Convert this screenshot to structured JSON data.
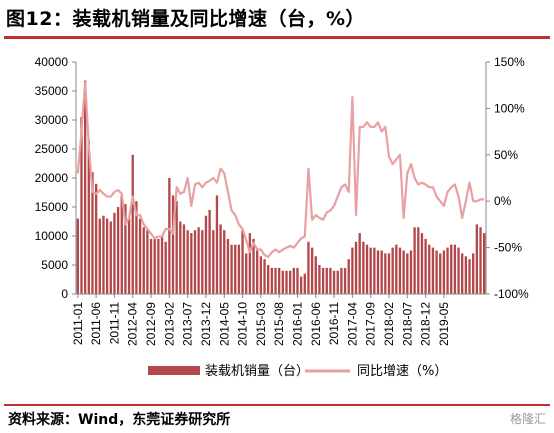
{
  "header": {
    "title": "图12：装载机销量及同比增速（台，%）"
  },
  "footer": {
    "source": "资料来源：Wind，东莞证券研究所",
    "watermark": "格隆汇"
  },
  "colors": {
    "bar": "#b3474a",
    "line": "#e8a0a2",
    "rule": "#c0302e",
    "axis": "#888888"
  },
  "chart_data": {
    "type": "bar",
    "x_ticks": [
      "2011-01",
      "2011-06",
      "2011-11",
      "2012-04",
      "2012-09",
      "2013-02",
      "2013-07",
      "2013-12",
      "2014-05",
      "2014-10",
      "2015-03",
      "2015-08",
      "2016-01",
      "2016-06",
      "2016-11",
      "2017-04",
      "2017-09",
      "2018-02",
      "2018-07",
      "2018-12",
      "2019-05"
    ],
    "y_left_ticks": [
      "0",
      "5000",
      "10000",
      "15000",
      "20000",
      "25000",
      "30000",
      "35000",
      "40000"
    ],
    "y_right_ticks": [
      "-100%",
      "-50%",
      "0%",
      "50%",
      "100%",
      "150%"
    ],
    "ylim_left": [
      0,
      40000
    ],
    "ylim_right": [
      -100,
      150
    ],
    "series": [
      {
        "name": "装载机销量（台）",
        "type": "bar",
        "axis": "left",
        "values": [
          13000,
          30500,
          36800,
          26500,
          21000,
          19000,
          13000,
          13500,
          13000,
          12500,
          14000,
          15000,
          17000,
          15500,
          13000,
          24000,
          16000,
          13000,
          11500,
          11000,
          9500,
          9500,
          9500,
          10000,
          9000,
          20000,
          17000,
          16000,
          12500,
          12000,
          11000,
          10500,
          11000,
          11500,
          11000,
          13500,
          14500,
          11000,
          17000,
          12000,
          11000,
          9500,
          8500,
          8500,
          8500,
          11000,
          7000,
          10500,
          9500,
          7500,
          6500,
          6000,
          5000,
          4500,
          4500,
          4500,
          4000,
          4000,
          4000,
          4500,
          4500,
          3000,
          3500,
          9000,
          8000,
          6500,
          5000,
          4500,
          4500,
          4500,
          4000,
          4000,
          4500,
          4500,
          6000,
          8000,
          9000,
          10500,
          9000,
          8500,
          8000,
          8000,
          7500,
          7500,
          7000,
          7000,
          8000,
          8500,
          8000,
          7500,
          7000,
          7500,
          11500,
          11500,
          10500,
          9500,
          8500,
          8000,
          7500,
          7000,
          7500,
          8000,
          8500,
          8500,
          8000,
          7000,
          6500,
          6000,
          7000,
          12000,
          11500,
          10500
        ]
      },
      {
        "name": "同比增速（%）",
        "type": "line",
        "axis": "right",
        "values": [
          30,
          75,
          128,
          60,
          10,
          8,
          12,
          8,
          5,
          5,
          10,
          12,
          8,
          -25,
          -18,
          5,
          -15,
          -15,
          -25,
          -30,
          -35,
          -40,
          -38,
          -38,
          -30,
          -30,
          -35,
          15,
          8,
          10,
          25,
          -5,
          18,
          20,
          15,
          20,
          22,
          25,
          20,
          35,
          30,
          10,
          -10,
          -15,
          -25,
          -30,
          -42,
          -55,
          -45,
          -52,
          -52,
          -58,
          -60,
          -55,
          -52,
          -55,
          -52,
          -50,
          -48,
          -50,
          -45,
          -40,
          -38,
          35,
          -20,
          -15,
          -18,
          -20,
          -12,
          -10,
          -5,
          5,
          15,
          18,
          10,
          112,
          -15,
          80,
          80,
          85,
          80,
          80,
          85,
          75,
          80,
          48,
          40,
          45,
          50,
          -18,
          30,
          40,
          25,
          18,
          20,
          18,
          15,
          15,
          5,
          0,
          -5,
          10,
          15,
          18,
          5,
          -18,
          0,
          20,
          0,
          0,
          2,
          2
        ]
      }
    ]
  }
}
